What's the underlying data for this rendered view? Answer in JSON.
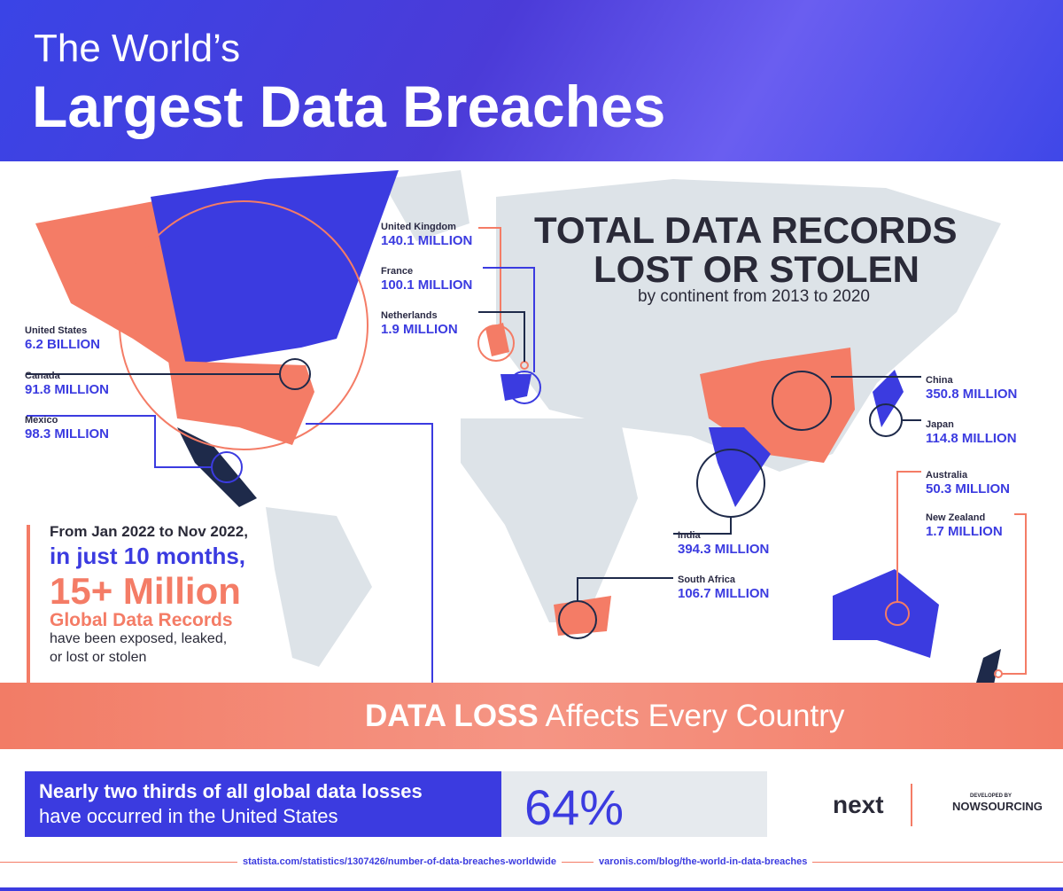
{
  "header": {
    "title_line1": "The World’s",
    "title_line2": "Largest Data Breaches"
  },
  "heading": {
    "line1": "TOTAL DATA RECORDS",
    "line2": "LOST OR STOLEN",
    "subtitle": "by continent from 2013 to 2020"
  },
  "callouts": [
    {
      "country": "United States",
      "value": "6.2 BILLION"
    },
    {
      "country": "Canada",
      "value": "91.8 MILLION"
    },
    {
      "country": "Mexico",
      "value": "98.3 MILLION"
    },
    {
      "country": "United Kingdom",
      "value": "140.1 MILLION"
    },
    {
      "country": "France",
      "value": "100.1 MILLION"
    },
    {
      "country": "Netherlands",
      "value": "1.9 MILLION"
    },
    {
      "country": "China",
      "value": "350.8 MILLION"
    },
    {
      "country": "Japan",
      "value": "114.8 MILLION"
    },
    {
      "country": "Australia",
      "value": "50.3 MILLION"
    },
    {
      "country": "New Zealand",
      "value": "1.7 MILLION"
    },
    {
      "country": "India",
      "value": "394.3 MILLION"
    },
    {
      "country": "South Africa",
      "value": "106.7 MILLION"
    }
  ],
  "stat": {
    "line1": "From Jan 2022 to Nov 2022,",
    "line2": "in just 10 months,",
    "line3": "15+ Million",
    "line4": "Global Data Records",
    "line5": "have been exposed, leaked,",
    "line6": "or lost or stolen"
  },
  "banner": {
    "bold": "DATA LOSS",
    "rest": "Affects Every Country"
  },
  "footer_stat": {
    "line1": "Nearly two thirds of all global data losses",
    "line2": "have occurred in the United States",
    "percent": "64%"
  },
  "logos": {
    "next": "next",
    "developed_by": "DEVELOPED BY",
    "nowsourcing": "NOWSOURCING"
  },
  "sources": [
    "statista.com/statistics/1307426/number-of-data-breaches-worldwide",
    "varonis.com/blog/the-world-in-data-breaches"
  ]
}
